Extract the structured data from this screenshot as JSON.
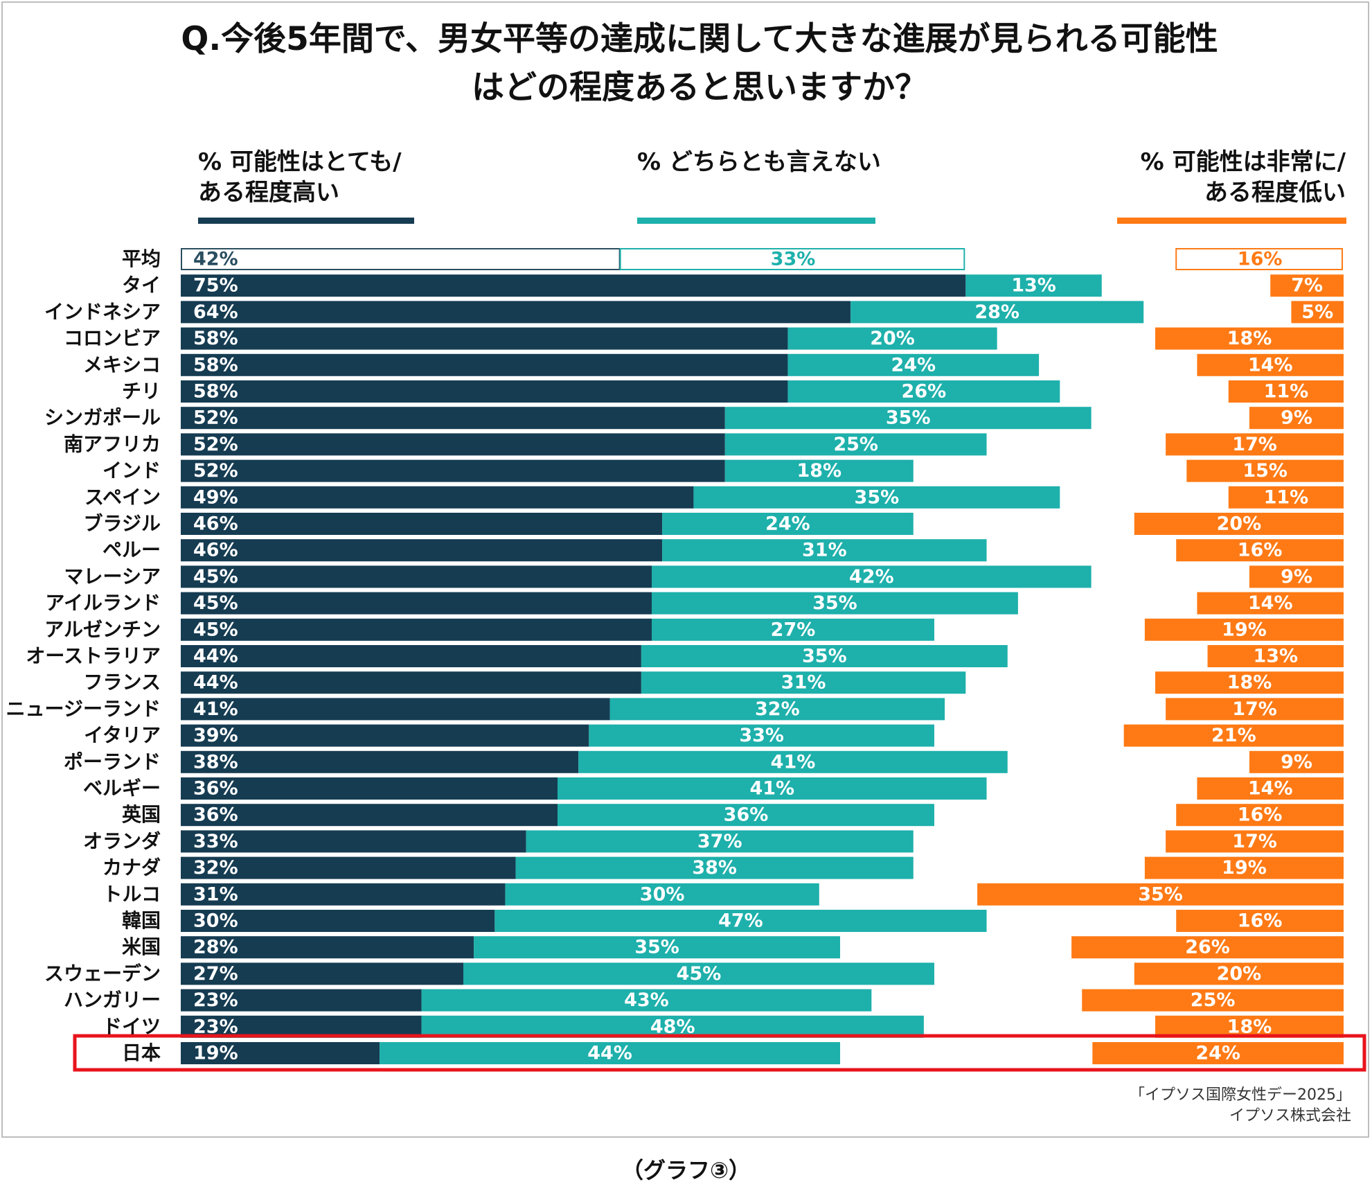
{
  "chart_data": {
    "type": "bar",
    "stacked": true,
    "orientation": "horizontal",
    "title": [
      "Q.今後5年間で、男女平等の達成に関して大きな進展が見られる可能性",
      "はどの程度あると思いますか？"
    ],
    "legend": {
      "high": [
        "% 可能性はとても/",
        "ある程度高い"
      ],
      "neutral": [
        "% どちらとも言えない"
      ],
      "low": [
        "% 可能性は非常に/",
        "ある程度低い"
      ]
    },
    "colors": {
      "high": "#163c52",
      "neutral": "#1eb0ab",
      "low": "#ff7a15",
      "highlight": "#e8141c",
      "outline_dark": "#2a4e60"
    },
    "categories": [
      "平均",
      "タイ",
      "インドネシア",
      "コロンビア",
      "メキシコ",
      "チリ",
      "シンガポール",
      "南アフリカ",
      "インド",
      "スペイン",
      "ブラジル",
      "ペルー",
      "マレーシア",
      "アイルランド",
      "アルゼンチン",
      "オーストラリア",
      "フランス",
      "ニュージーランド",
      "イタリア",
      "ポーランド",
      "ベルギー",
      "英国",
      "オランダ",
      "カナダ",
      "トルコ",
      "韓国",
      "米国",
      "スウェーデン",
      "ハンガリー",
      "ドイツ",
      "日本"
    ],
    "series": [
      {
        "name": "可能性はとても/ある程度高い",
        "values": [
          42,
          75,
          64,
          58,
          58,
          58,
          52,
          52,
          52,
          49,
          46,
          46,
          45,
          45,
          45,
          44,
          44,
          41,
          39,
          38,
          36,
          36,
          33,
          32,
          31,
          30,
          28,
          27,
          23,
          23,
          19
        ]
      },
      {
        "name": "どちらとも言えない",
        "values": [
          33,
          13,
          28,
          20,
          24,
          26,
          35,
          25,
          18,
          35,
          24,
          31,
          42,
          35,
          27,
          35,
          31,
          32,
          33,
          41,
          41,
          36,
          37,
          38,
          30,
          47,
          35,
          45,
          43,
          48,
          44
        ]
      },
      {
        "name": "可能性は非常に/ある程度低い",
        "values": [
          16,
          7,
          5,
          18,
          14,
          11,
          9,
          17,
          15,
          11,
          20,
          16,
          9,
          14,
          19,
          13,
          18,
          17,
          21,
          9,
          14,
          16,
          17,
          19,
          35,
          16,
          26,
          20,
          25,
          18,
          24
        ]
      }
    ],
    "outlined_row": "平均",
    "highlighted_row": "日本",
    "value_suffix": "%"
  },
  "source": [
    "「イプソス国際女性デー2025」",
    "イプソス株式会社"
  ],
  "caption": "（グラフ③）"
}
